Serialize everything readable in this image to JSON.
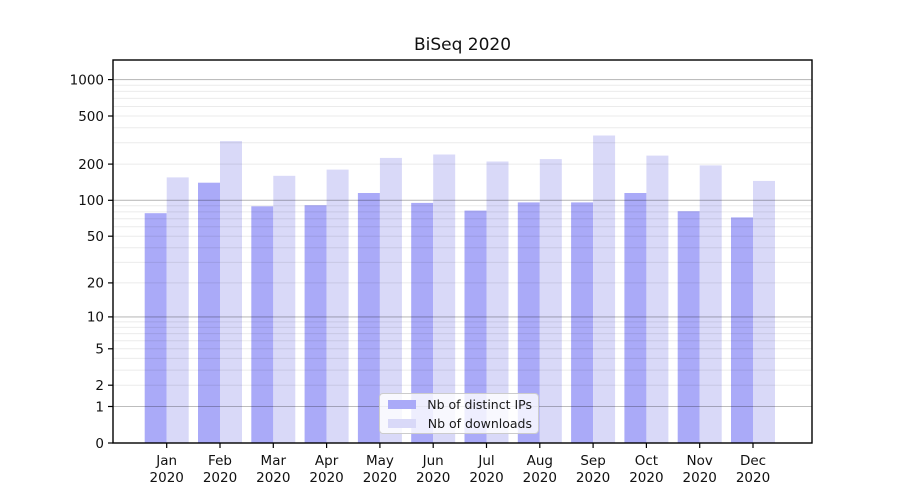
{
  "figure": {
    "title": "BiSeq 2020"
  },
  "chart_data": {
    "type": "bar",
    "title": "BiSeq 2020",
    "categories": [
      "Jan 2020",
      "Feb 2020",
      "Mar 2020",
      "Apr 2020",
      "May 2020",
      "Jun 2020",
      "Jul 2020",
      "Aug 2020",
      "Sep 2020",
      "Oct 2020",
      "Nov 2020",
      "Dec 2020"
    ],
    "series": [
      {
        "name": "Nb of distinct IPs",
        "color": "#aaaaf8",
        "values": [
          78,
          140,
          89,
          91,
          115,
          95,
          82,
          96,
          96,
          115,
          81,
          72
        ]
      },
      {
        "name": "Nb of downloads",
        "color": "#d9d9f8",
        "values": [
          155,
          310,
          160,
          180,
          225,
          240,
          210,
          220,
          345,
          235,
          195,
          145
        ]
      }
    ],
    "xlabel": "",
    "ylabel": "",
    "yscale": "log1p (symlog-like: position proportional to log10(1+v))",
    "ylim": [
      0,
      1500
    ],
    "yticks": [
      0,
      1,
      2,
      5,
      10,
      20,
      50,
      100,
      200,
      500,
      1000
    ],
    "grid": {
      "orientation": "horizontal",
      "major_values": [
        1,
        10,
        100,
        1000
      ],
      "minor_values": [
        2,
        3,
        4,
        5,
        6,
        7,
        8,
        9,
        20,
        30,
        40,
        50,
        60,
        70,
        80,
        90,
        200,
        300,
        400,
        500,
        600,
        700,
        800,
        900
      ],
      "major_color": "rgba(0,0,0,0.26)",
      "minor_color": "rgba(0,0,0,0.08)",
      "drawn_over_bars": true
    },
    "legend_position": "inside lower-center, right of middle",
    "frame_color": "#000000",
    "tick_label_color": "#111111"
  }
}
